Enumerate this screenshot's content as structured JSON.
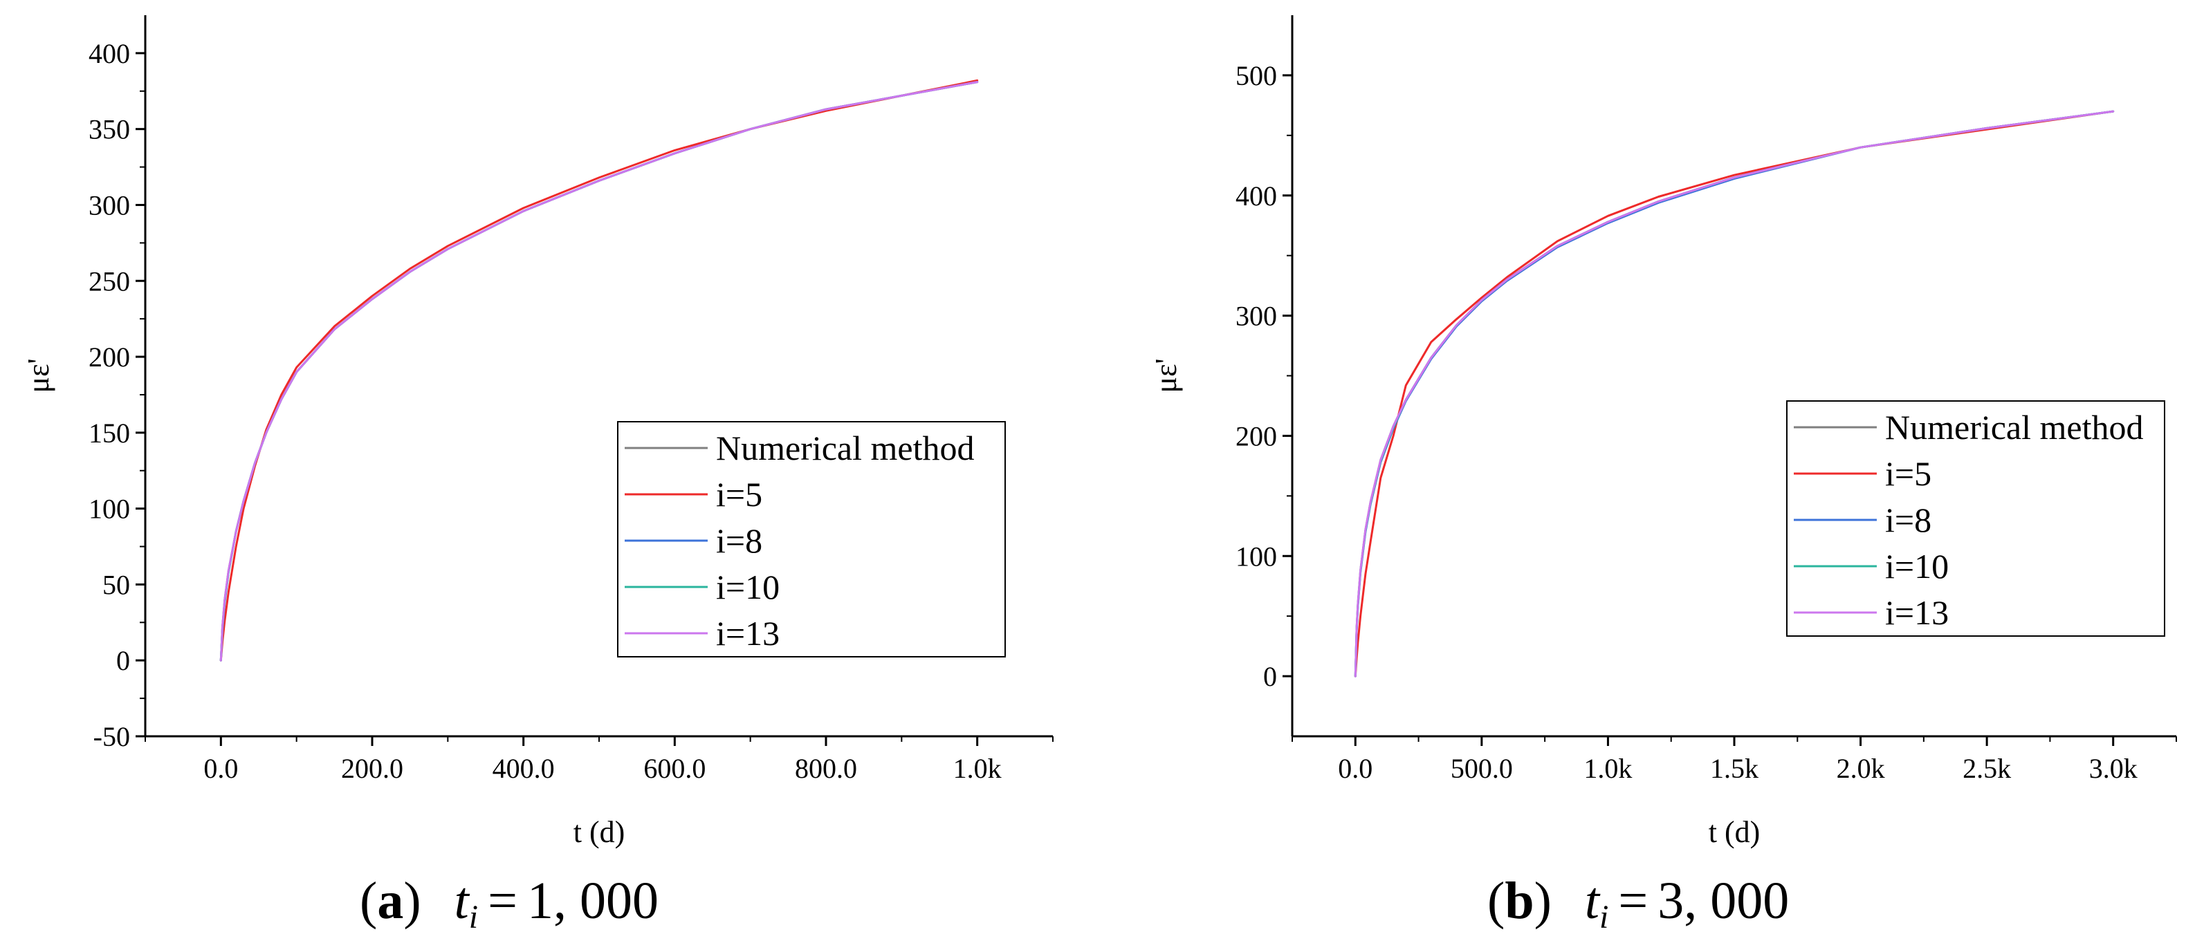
{
  "chart_data": [
    {
      "type": "line",
      "panel": "a",
      "caption": {
        "letter": "a",
        "variable": "t",
        "subscript": "i",
        "equals": "=",
        "value": "1, 000"
      },
      "xlabel": "t (d)",
      "ylabel": "με'",
      "xlim": [
        -100,
        1100
      ],
      "ylim": [
        -50,
        425
      ],
      "xticks": [
        0,
        200,
        400,
        600,
        800,
        1000
      ],
      "xtick_labels": [
        "0.0",
        "200.0",
        "400.0",
        "600.0",
        "800.0",
        "1.0k"
      ],
      "yticks": [
        -50,
        0,
        50,
        100,
        150,
        200,
        250,
        300,
        350,
        400
      ],
      "ytick_labels": [
        "-50",
        "0",
        "50",
        "100",
        "150",
        "200",
        "250",
        "300",
        "350",
        "400"
      ],
      "legend_position": "center-right",
      "series": [
        {
          "name": "Numerical method",
          "color": "#808080",
          "x": [
            0,
            2,
            5,
            10,
            20,
            30,
            45,
            60,
            80,
            100,
            150,
            200,
            250,
            300,
            400,
            500,
            600,
            700,
            800,
            900,
            1000
          ],
          "values": [
            0,
            22,
            40,
            59,
            85,
            105,
            130,
            150,
            172,
            190,
            218,
            238,
            256,
            271,
            296,
            316,
            334,
            350,
            363,
            372,
            381
          ]
        },
        {
          "name": "i=5",
          "color": "#ee2a2a",
          "x": [
            0,
            2,
            5,
            10,
            20,
            30,
            45,
            60,
            80,
            100,
            150,
            200,
            250,
            300,
            400,
            500,
            600,
            700,
            800,
            900,
            1000
          ],
          "values": [
            0,
            12,
            26,
            45,
            75,
            100,
            128,
            152,
            175,
            193,
            220,
            240,
            258,
            273,
            298,
            318,
            336,
            350,
            362,
            372,
            382
          ]
        },
        {
          "name": "i=8",
          "color": "#3d73d9",
          "x": [
            0,
            2,
            5,
            10,
            20,
            30,
            45,
            60,
            80,
            100,
            150,
            200,
            250,
            300,
            400,
            500,
            600,
            700,
            800,
            900,
            1000
          ],
          "values": [
            0,
            20,
            38,
            58,
            85,
            105,
            130,
            150,
            172,
            190,
            218,
            238,
            256,
            271,
            296,
            316,
            334,
            350,
            363,
            372,
            381
          ]
        },
        {
          "name": "i=10",
          "color": "#2bb59e",
          "x": [
            0,
            2,
            5,
            10,
            20,
            30,
            45,
            60,
            80,
            100,
            150,
            200,
            250,
            300,
            400,
            500,
            600,
            700,
            800,
            900,
            1000
          ],
          "values": [
            0,
            21,
            39,
            58,
            85,
            105,
            130,
            150,
            172,
            190,
            218,
            238,
            256,
            271,
            296,
            316,
            334,
            350,
            363,
            372,
            381
          ]
        },
        {
          "name": "i=13",
          "color": "#cc77ee",
          "x": [
            0,
            2,
            5,
            10,
            20,
            30,
            45,
            60,
            80,
            100,
            150,
            200,
            250,
            300,
            400,
            500,
            600,
            700,
            800,
            900,
            1000
          ],
          "values": [
            0,
            22,
            40,
            59,
            85,
            105,
            130,
            150,
            172,
            190,
            218,
            238,
            256,
            271,
            296,
            316,
            334,
            350,
            363,
            372,
            381
          ]
        }
      ]
    },
    {
      "type": "line",
      "panel": "b",
      "caption": {
        "letter": "b",
        "variable": "t",
        "subscript": "i",
        "equals": "=",
        "value": "3, 000"
      },
      "xlabel": "t (d)",
      "ylabel": "με'",
      "xlim": [
        -250,
        3250
      ],
      "ylim": [
        -50,
        550
      ],
      "xticks": [
        0,
        500,
        1000,
        1500,
        2000,
        2500,
        3000
      ],
      "xtick_labels": [
        "0.0",
        "500.0",
        "1.0k",
        "1.5k",
        "2.0k",
        "2.5k",
        "3.0k"
      ],
      "yticks": [
        0,
        100,
        200,
        300,
        400,
        500
      ],
      "ytick_labels": [
        "0",
        "100",
        "200",
        "300",
        "400",
        "500"
      ],
      "legend_position": "center-right",
      "series": [
        {
          "name": "Numerical method",
          "color": "#808080",
          "x": [
            0,
            5,
            10,
            20,
            40,
            60,
            100,
            150,
            200,
            300,
            400,
            500,
            600,
            800,
            1000,
            1200,
            1500,
            2000,
            2500,
            3000
          ],
          "values": [
            0,
            40,
            60,
            88,
            122,
            145,
            180,
            208,
            230,
            265,
            292,
            313,
            330,
            358,
            378,
            395,
            415,
            440,
            456,
            470
          ]
        },
        {
          "name": "i=5",
          "color": "#ee2a2a",
          "x": [
            0,
            5,
            10,
            20,
            40,
            60,
            100,
            150,
            200,
            300,
            400,
            500,
            600,
            800,
            1000,
            1200,
            1500,
            2000,
            2500,
            3000
          ],
          "values": [
            0,
            15,
            28,
            50,
            85,
            112,
            165,
            200,
            242,
            278,
            297,
            315,
            332,
            362,
            383,
            399,
            417,
            440,
            455,
            470
          ]
        },
        {
          "name": "i=8",
          "color": "#3d73d9",
          "x": [
            0,
            5,
            10,
            20,
            40,
            60,
            100,
            150,
            200,
            300,
            400,
            500,
            600,
            800,
            1000,
            1200,
            1500,
            2000,
            2500,
            3000
          ],
          "values": [
            0,
            38,
            58,
            86,
            120,
            143,
            178,
            206,
            229,
            264,
            291,
            312,
            329,
            357,
            377,
            394,
            414,
            440,
            456,
            470
          ]
        },
        {
          "name": "i=10",
          "color": "#2bb59e",
          "x": [
            0,
            5,
            10,
            20,
            40,
            60,
            100,
            150,
            200,
            300,
            400,
            500,
            600,
            800,
            1000,
            1200,
            1500,
            2000,
            2500,
            3000
          ],
          "values": [
            0,
            39,
            59,
            87,
            121,
            144,
            179,
            207,
            230,
            265,
            292,
            313,
            330,
            358,
            378,
            395,
            415,
            440,
            456,
            470
          ]
        },
        {
          "name": "i=13",
          "color": "#cc77ee",
          "x": [
            0,
            5,
            10,
            20,
            40,
            60,
            100,
            150,
            200,
            300,
            400,
            500,
            600,
            800,
            1000,
            1200,
            1500,
            2000,
            2500,
            3000
          ],
          "values": [
            0,
            40,
            60,
            88,
            122,
            145,
            180,
            208,
            230,
            265,
            292,
            313,
            330,
            358,
            378,
            395,
            415,
            440,
            456,
            470
          ]
        }
      ]
    }
  ]
}
